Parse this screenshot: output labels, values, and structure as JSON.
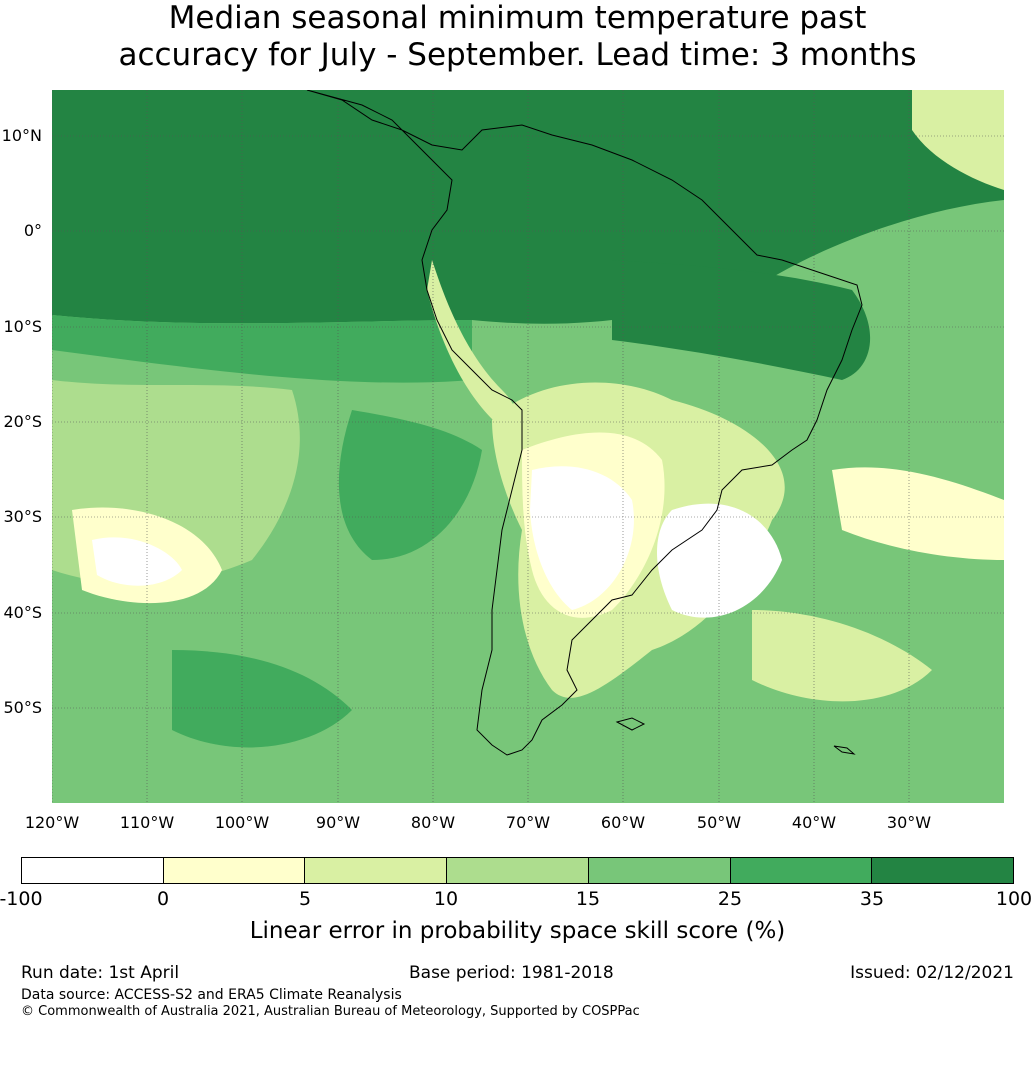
{
  "title": {
    "line1": "Median seasonal minimum temperature past",
    "line2": "accuracy for July - September. Lead time: 3 months"
  },
  "map": {
    "lat_labels": [
      "10°N",
      "0°",
      "10°S",
      "20°S",
      "30°S",
      "40°S",
      "50°S"
    ],
    "lon_labels": [
      "120°W",
      "110°W",
      "100°W",
      "90°W",
      "80°W",
      "70°W",
      "60°W",
      "50°W",
      "40°W",
      "30°W"
    ]
  },
  "colorbar": {
    "colors": [
      "#ffffff",
      "#ffffcc",
      "#d9f0a3",
      "#addd8e",
      "#78c679",
      "#41ab5d",
      "#238443"
    ],
    "ticks": [
      "-100",
      "0",
      "5",
      "10",
      "15",
      "25",
      "35",
      "100"
    ],
    "label": "Linear error in probability space skill score (%)"
  },
  "footer": {
    "run_date": "Run date: 1st April",
    "base_period": "Base period: 1981-2018",
    "issued": "Issued: 02/12/2021",
    "data_source": "Data source: ACCESS-S2 and ERA5 Climate Reanalysis",
    "copyright": "© Commonwealth of Australia 2021, Australian Bureau of Meteorology, Supported by COSPPac"
  }
}
